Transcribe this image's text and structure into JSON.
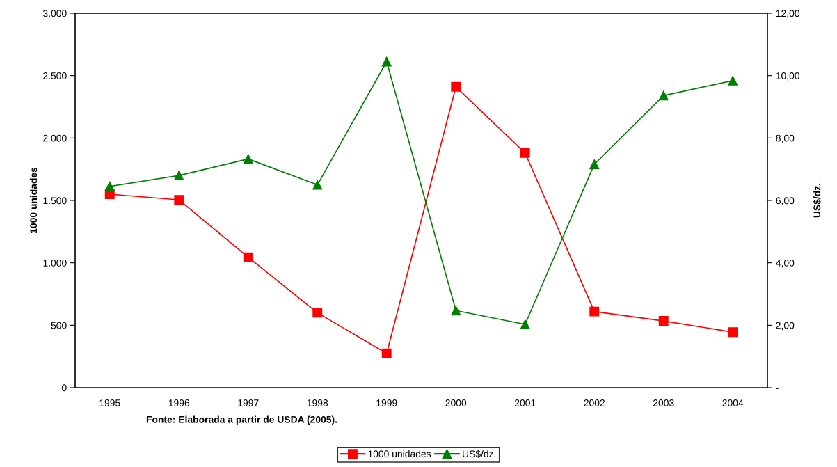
{
  "chart_data": {
    "type": "line",
    "categories": [
      "1995",
      "1996",
      "1997",
      "1998",
      "1999",
      "2000",
      "2001",
      "2002",
      "2003",
      "2004"
    ],
    "series": [
      {
        "name": "1000 unidades",
        "color": "#ff0000",
        "marker": "square",
        "values": [
          1550,
          1505,
          1045,
          600,
          275,
          2410,
          1880,
          610,
          535,
          445
        ]
      },
      {
        "name": "US$/dz.",
        "color": "#008000",
        "marker": "triangle",
        "axis": "y2",
        "values": [
          6.45,
          6.8,
          7.33,
          6.5,
          10.45,
          2.47,
          2.03,
          7.16,
          9.36,
          9.84
        ]
      }
    ],
    "ylabel": "1000 unidades",
    "y2label": "US$/dz.",
    "ylim": [
      0,
      3000
    ],
    "yticks": [
      {
        "value": 0,
        "label": "0"
      },
      {
        "value": 500,
        "label": "500"
      },
      {
        "value": 1000,
        "label": "1.000"
      },
      {
        "value": 1500,
        "label": "1.500"
      },
      {
        "value": 2000,
        "label": "2.000"
      },
      {
        "value": 2500,
        "label": "2.500"
      },
      {
        "value": 3000,
        "label": "3.000"
      }
    ],
    "y2lim": [
      0,
      12
    ],
    "y2ticks": [
      {
        "value": 0,
        "label": "-"
      },
      {
        "value": 2,
        "label": "2,00"
      },
      {
        "value": 4,
        "label": "4,00"
      },
      {
        "value": 6,
        "label": "6,00"
      },
      {
        "value": 8,
        "label": "8,00"
      },
      {
        "value": 10,
        "label": "10,00"
      },
      {
        "value": 12,
        "label": "12,00"
      }
    ],
    "annotations": [
      "Fonte: Elaborada a partir de USDA (2005)."
    ],
    "legend": "bottom",
    "grid": false,
    "line_style": "solid"
  }
}
